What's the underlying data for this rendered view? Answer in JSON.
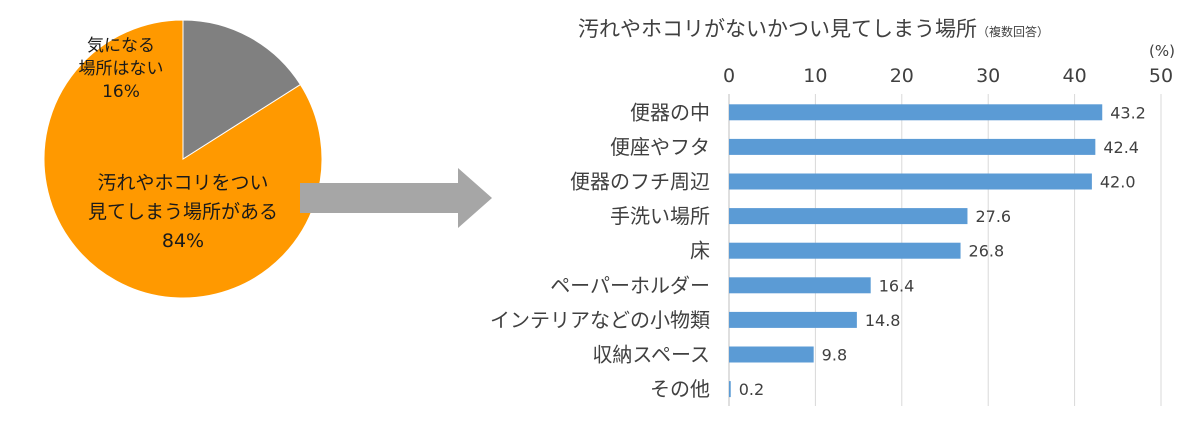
{
  "chart_data": [
    {
      "type": "pie",
      "slices": [
        {
          "label_lines": [
            "汚れやホコリをつい",
            "見てしまう場所がある"
          ],
          "value": 84,
          "value_label": "84%",
          "color": "#FF9900"
        },
        {
          "label_lines": [
            "気になる",
            "場所はない"
          ],
          "value": 16,
          "value_label": "16%",
          "color": "#808080"
        }
      ]
    },
    {
      "type": "bar",
      "orientation": "horizontal",
      "title": "汚れやホコリがないかつい見てしまう場所",
      "subtitle": "（複数回答）",
      "unit": "(%)",
      "categories": [
        "便器の中",
        "便座やフタ",
        "便器のフチ周辺",
        "手洗い場所",
        "床",
        "ペーパーホルダー",
        "インテリアなどの小物類",
        "収納スペース",
        "その他"
      ],
      "values": [
        43.2,
        42.4,
        42.0,
        27.6,
        26.8,
        16.4,
        14.8,
        9.8,
        0.2
      ],
      "value_labels": [
        "43.2",
        "42.4",
        "42.0",
        "27.6",
        "26.8",
        "16.4",
        "14.8",
        "9.8",
        "0.2"
      ],
      "xlim": [
        0,
        50
      ],
      "x_ticks": [
        "0",
        "10",
        "20",
        "30",
        "40",
        "50"
      ],
      "grid": true,
      "bar_color": "#5B9BD5"
    }
  ],
  "arrow_color": "#A6A6A6"
}
